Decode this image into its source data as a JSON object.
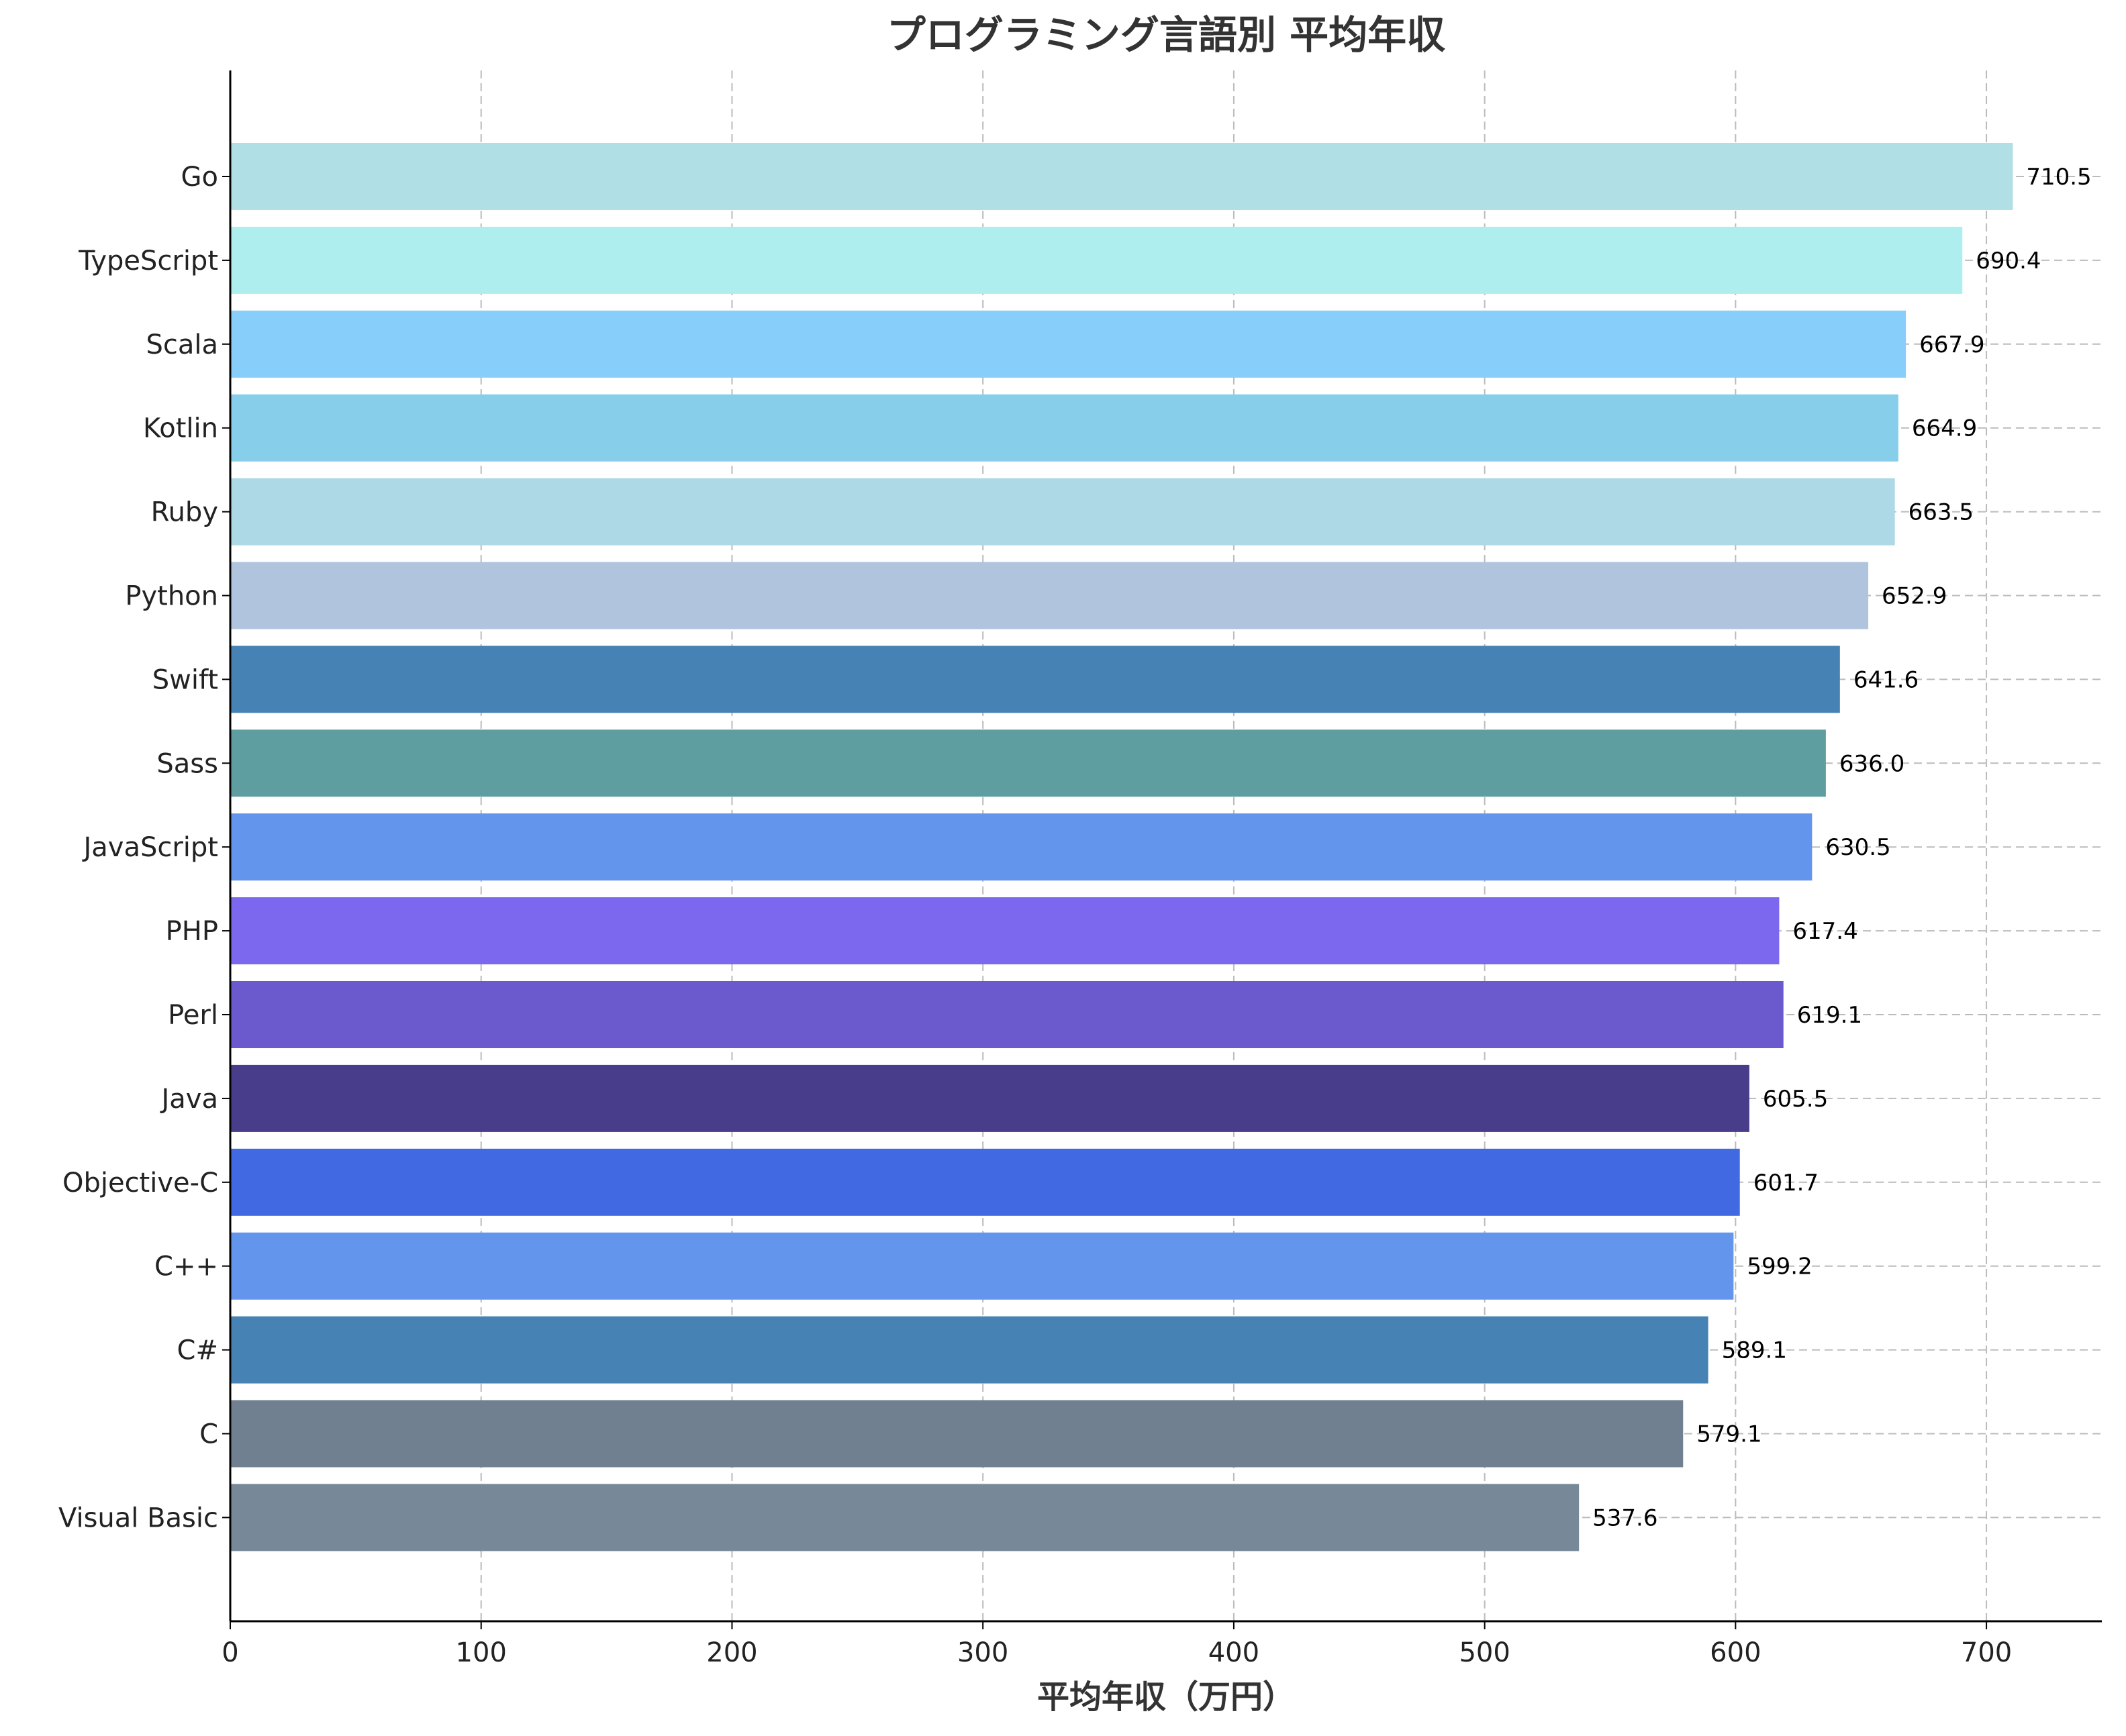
{
  "chart_data": {
    "type": "bar",
    "orientation": "horizontal",
    "title": "プログラミング言語別 平均年収",
    "xlabel": "平均年収（万円）",
    "ylabel": "",
    "xlim": [
      0,
      746
    ],
    "xticks": [
      0,
      100,
      200,
      300,
      400,
      500,
      600,
      700
    ],
    "grid": true,
    "categories": [
      "Go",
      "TypeScript",
      "Scala",
      "Kotlin",
      "Ruby",
      "Python",
      "Swift",
      "Sass",
      "JavaScript",
      "PHP",
      "Perl",
      "Java",
      "Objective-C",
      "C++",
      "C#",
      "C",
      "Visual Basic"
    ],
    "values": [
      710.5,
      690.4,
      667.9,
      664.9,
      663.5,
      652.9,
      641.6,
      636.0,
      630.5,
      617.4,
      619.1,
      605.5,
      601.7,
      599.2,
      589.1,
      579.1,
      537.6
    ],
    "value_labels": [
      "710.5",
      "690.4",
      "667.9",
      "664.9",
      "663.5",
      "652.9",
      "641.6",
      "636.0",
      "630.5",
      "617.4",
      "619.1",
      "605.5",
      "601.7",
      "599.2",
      "589.1",
      "579.1",
      "537.6"
    ],
    "colors": [
      "#b0e0e6",
      "#afeeee",
      "#87cefa",
      "#87ceeb",
      "#add8e6",
      "#b0c4de",
      "#4682b4",
      "#5f9ea0",
      "#6495ed",
      "#7b68ee",
      "#6a5acd",
      "#483d8b",
      "#4169e1",
      "#6495ed",
      "#4682b4",
      "#708090",
      "#778899"
    ]
  }
}
